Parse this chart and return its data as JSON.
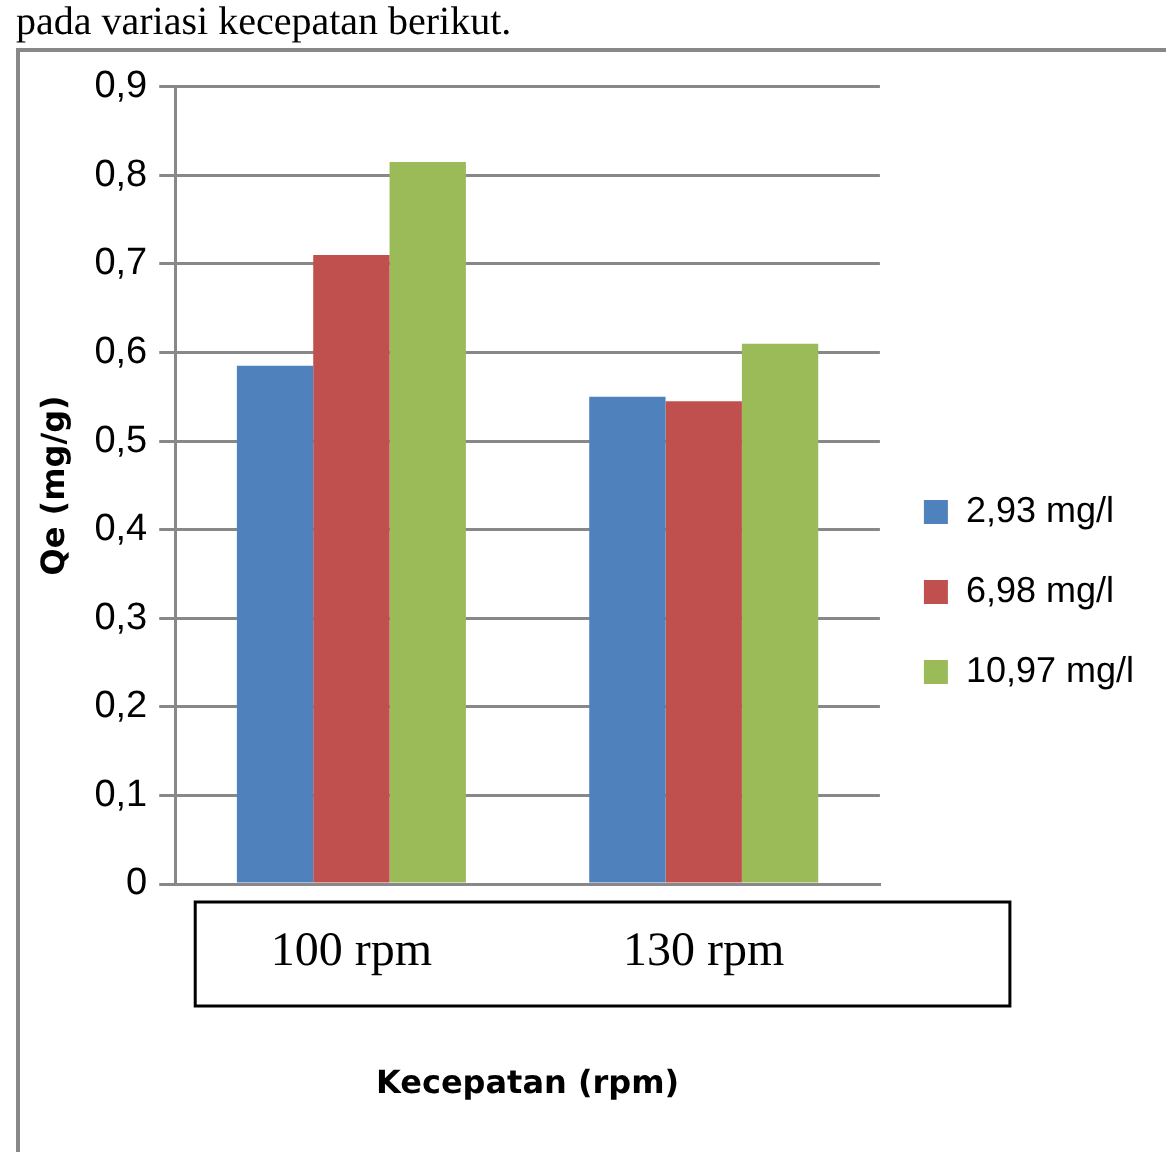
{
  "chart_data": {
    "type": "bar",
    "ylabel": "Qe (mg/g)",
    "xlabel": "Kecepatan (rpm)",
    "annotations": [
      "pada variasi kecepatan berikut."
    ],
    "categories": [
      "100 rpm",
      "130 rpm"
    ],
    "series": [
      {
        "name": "2,93 mg/l",
        "color": "#4f81bd",
        "values": [
          0.585,
          0.55
        ]
      },
      {
        "name": "6,98 mg/l",
        "color": "#c0504d",
        "values": [
          0.71,
          0.545
        ]
      },
      {
        "name": "10,97 mg/l",
        "color": "#9bbb59",
        "values": [
          0.815,
          0.61
        ]
      }
    ],
    "ylim": [
      0,
      0.9
    ],
    "yticks": [
      0,
      {
        "value": 0.1,
        "label": "0,1"
      },
      {
        "value": 0.2,
        "label": "0,2"
      },
      {
        "value": 0.3,
        "label": "0,3"
      },
      {
        "value": 0.4,
        "label": "0,4"
      },
      {
        "value": 0.5,
        "label": "0,5"
      },
      {
        "value": 0.6,
        "label": "0,6"
      },
      {
        "value": 0.7,
        "label": "0,7"
      },
      {
        "value": 0.8,
        "label": "0,8"
      },
      {
        "value": 0.9,
        "label": "0,9"
      }
    ],
    "grid": "y",
    "legend": "right"
  }
}
